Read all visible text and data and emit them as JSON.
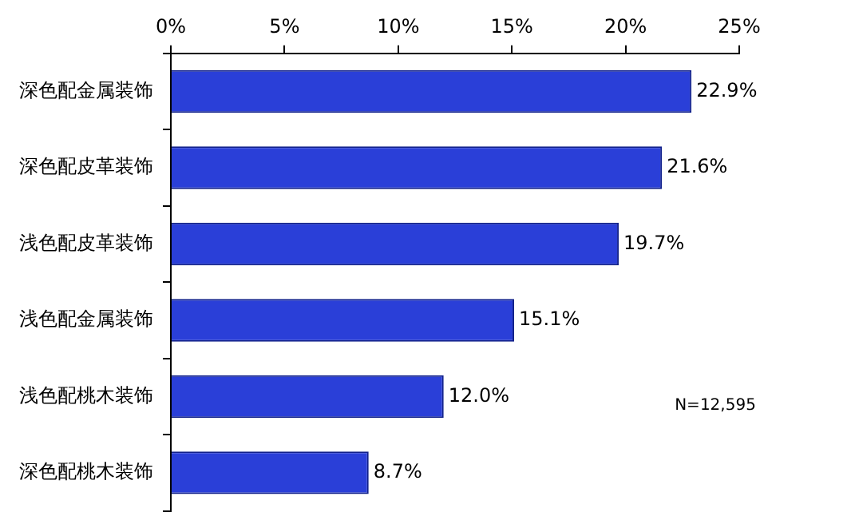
{
  "chart_data": {
    "type": "bar",
    "orientation": "horizontal",
    "categories": [
      "深色配金属装饰",
      "深色配皮革装饰",
      "浅色配皮革装饰",
      "浅色配金属装饰",
      "浅色配桃木装饰",
      "深色配桃木装饰"
    ],
    "values": [
      22.9,
      21.6,
      19.7,
      15.1,
      12.0,
      8.7
    ],
    "value_labels": [
      "22.9%",
      "21.6%",
      "19.7%",
      "15.1%",
      "12.0%",
      "8.7%"
    ],
    "color": "#2a3fd8",
    "xlim": [
      0,
      25
    ],
    "xticks": [
      {
        "value": 0,
        "label": "0%"
      },
      {
        "value": 5,
        "label": "5%"
      },
      {
        "value": 10,
        "label": "10%"
      },
      {
        "value": 15,
        "label": "15%"
      },
      {
        "value": 20,
        "label": "20%"
      },
      {
        "value": 25,
        "label": "25%"
      }
    ],
    "grid": false,
    "legend": false,
    "annotations": [
      "N=12,595"
    ]
  }
}
